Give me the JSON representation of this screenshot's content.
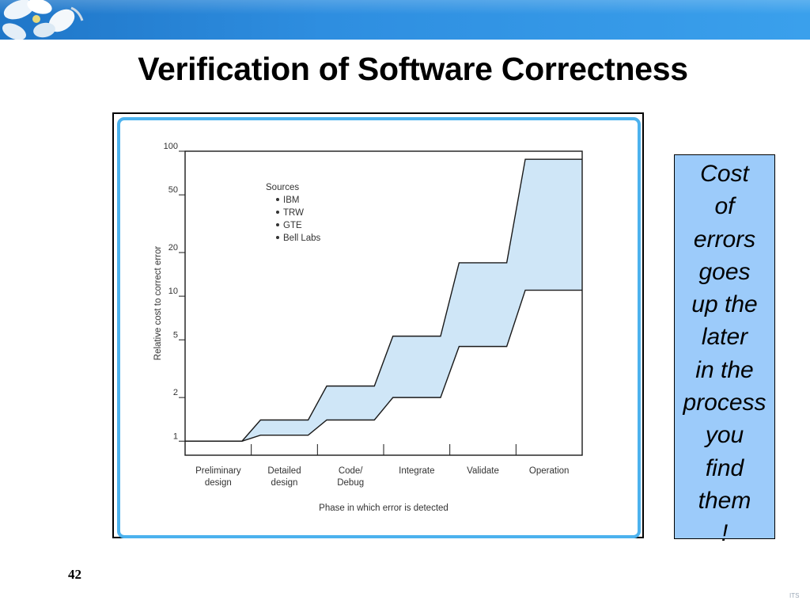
{
  "slide": {
    "title": "Verification of Software Correctness",
    "page_number": "42",
    "footer_logo": "ITS",
    "callout_lines": [
      "Cost",
      "of",
      "errors",
      "goes",
      "up the",
      "later",
      "in the",
      "process",
      "you",
      "find",
      "them",
      "!"
    ],
    "colors": {
      "band": "#2e8ee0",
      "frame_border": "#4cb2ee",
      "callout_bg": "#9ccbfa",
      "chart_fill": "#cfe6f7"
    }
  },
  "chart_data": {
    "type": "area",
    "title": "",
    "xlabel": "Phase in which error is detected",
    "ylabel": "Relative cost to correct error",
    "yscale": "log",
    "ylim": [
      0.8,
      100
    ],
    "yticks": [
      1,
      2,
      5,
      10,
      20,
      50,
      100
    ],
    "categories": [
      "Preliminary design",
      "Detailed design",
      "Code/ Debug",
      "Integrate",
      "Validate",
      "Operation"
    ],
    "category_labels": [
      [
        "Preliminary",
        "design"
      ],
      [
        "Detailed",
        "design"
      ],
      [
        "Code/",
        "Debug"
      ],
      [
        "Integrate"
      ],
      [
        "Validate"
      ],
      [
        "Operation"
      ]
    ],
    "series": [
      {
        "name": "",
        "values": [
          1,
          1.1,
          1.4,
          2,
          4.5,
          11
        ]
      },
      {
        "name": "",
        "values": [
          1,
          1.4,
          2.4,
          5.3,
          17,
          88
        ]
      }
    ],
    "legend": {
      "title": "Sources",
      "items": [
        "IBM",
        "TRW",
        "GTE",
        "Bell Labs"
      ],
      "position": "top-left"
    },
    "grid": false
  }
}
